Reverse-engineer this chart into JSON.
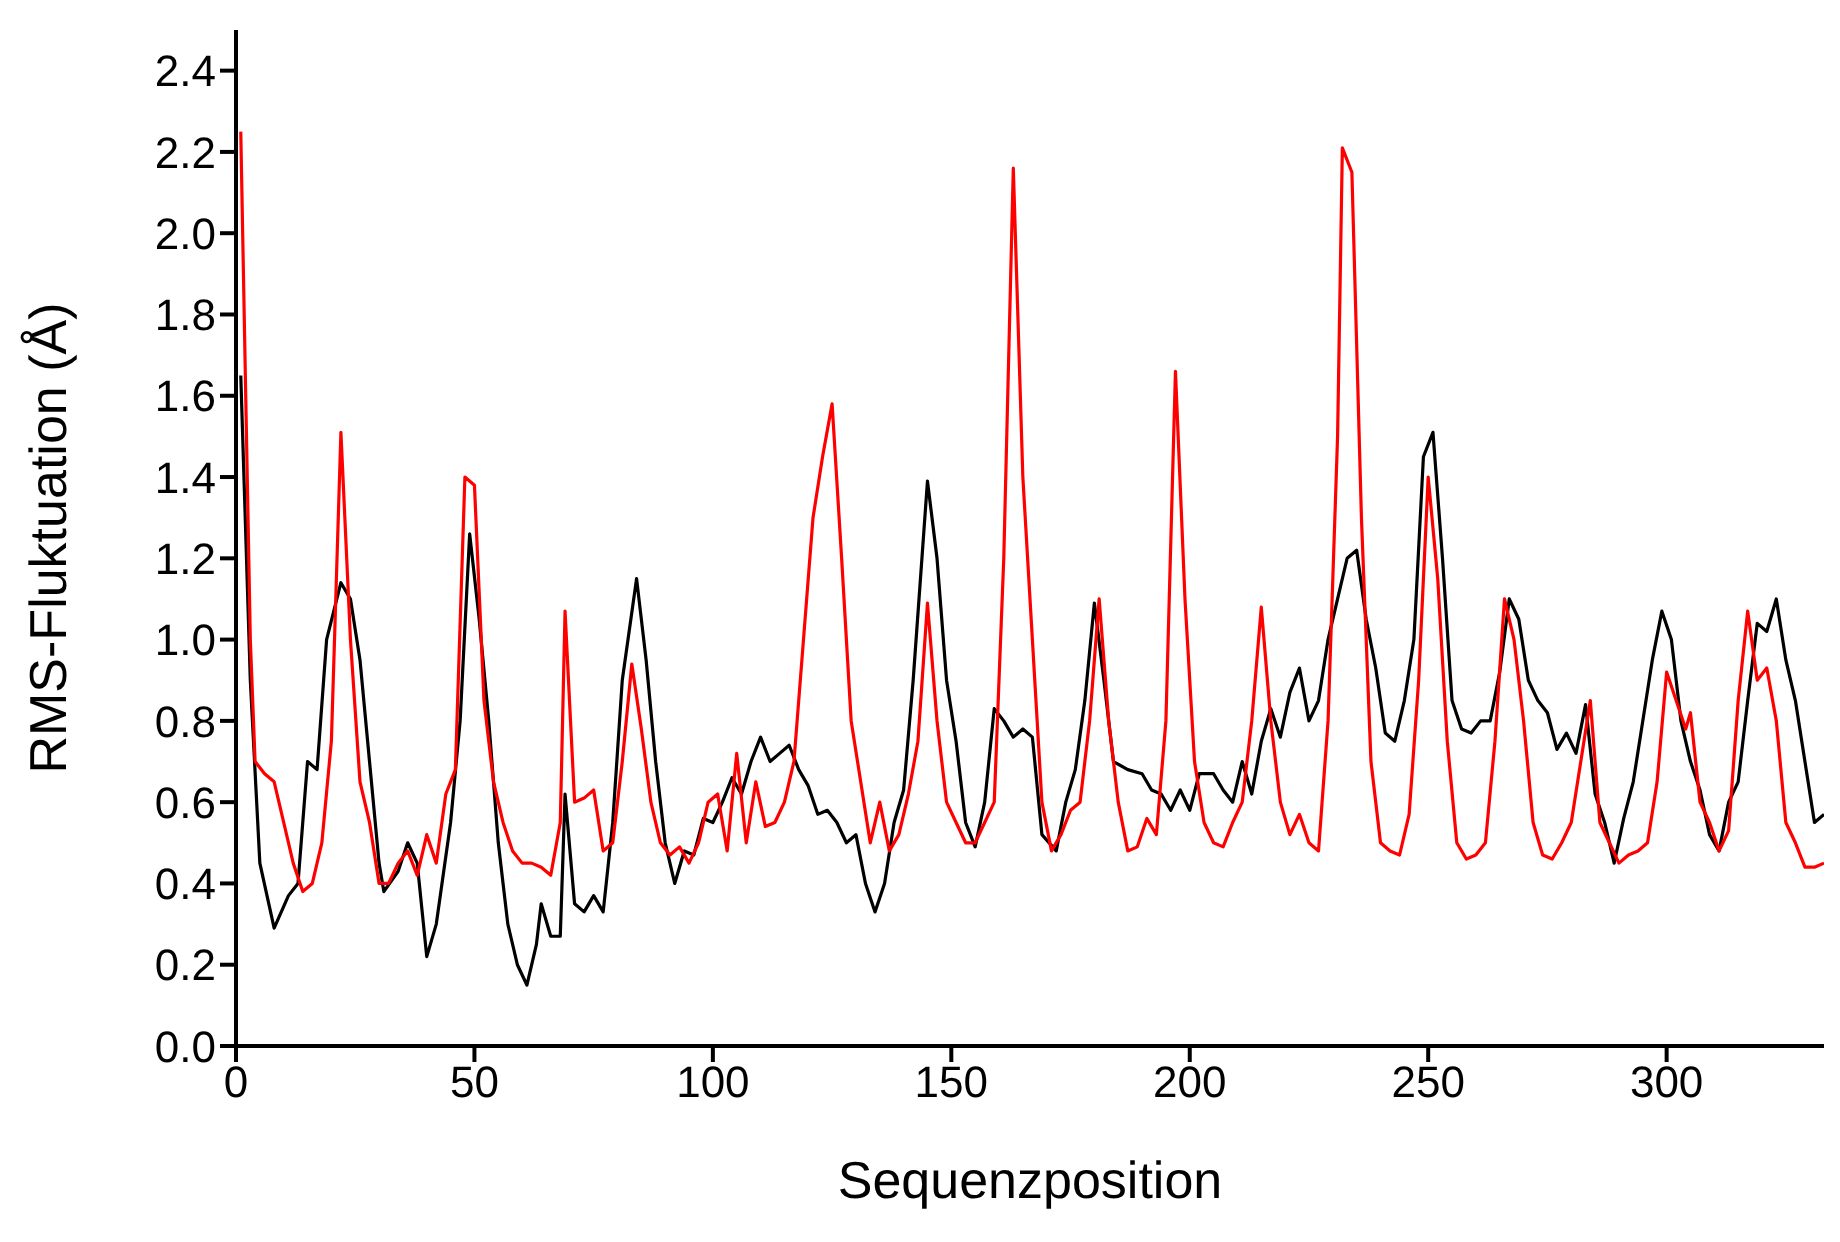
{
  "chart_data": {
    "type": "line",
    "xlabel": "Sequenzposition",
    "ylabel": "RMS-Fluktuation (Å)",
    "xlim": [
      0,
      333
    ],
    "xticks": [
      0,
      50,
      100,
      150,
      200,
      250,
      300
    ],
    "ylim": [
      0,
      2.5
    ],
    "yticks": [
      {
        "value": 0,
        "label": "0.0"
      },
      {
        "value": 0.2,
        "label": "0.2"
      },
      {
        "value": 0.4,
        "label": "0.4"
      },
      {
        "value": 0.6,
        "label": "0.6"
      },
      {
        "value": 0.8,
        "label": "0.8"
      },
      {
        "value": 1,
        "label": "1.0"
      },
      {
        "value": 1.2,
        "label": "1.2"
      },
      {
        "value": 1.4,
        "label": "1.4"
      },
      {
        "value": 1.6,
        "label": "1.6"
      },
      {
        "value": 1.8,
        "label": "1.8"
      },
      {
        "value": 2,
        "label": "2.0"
      },
      {
        "value": 2.2,
        "label": "2.2"
      },
      {
        "value": 2.4,
        "label": "2.4"
      }
    ],
    "grid": false,
    "legend": false,
    "marker": "none",
    "line_style": "solid",
    "series": [
      {
        "color": "#000000",
        "x": [
          1,
          3,
          5,
          8,
          11,
          13,
          15,
          17,
          19,
          22,
          24,
          26,
          28,
          30,
          31,
          34,
          36,
          38,
          40,
          42,
          45,
          47,
          49,
          51,
          53,
          55,
          57,
          59,
          61,
          63,
          64,
          66,
          68,
          69,
          71,
          73,
          75,
          77,
          79,
          81,
          84,
          86,
          88,
          90,
          92,
          94,
          96,
          98,
          100,
          102,
          104,
          106,
          108,
          110,
          112,
          114,
          116,
          118,
          120,
          122,
          124,
          126,
          128,
          130,
          132,
          134,
          136,
          138,
          140,
          142,
          145,
          147,
          149,
          151,
          153,
          155,
          157,
          159,
          161,
          163,
          165,
          167,
          169,
          172,
          174,
          176,
          178,
          180,
          182,
          184,
          187,
          190,
          192,
          194,
          196,
          198,
          200,
          202,
          205,
          207,
          209,
          211,
          213,
          215,
          217,
          219,
          221,
          223,
          225,
          227,
          229,
          231,
          233,
          235,
          237,
          239,
          241,
          243,
          245,
          247,
          249,
          251,
          253,
          255,
          257,
          259,
          261,
          263,
          265,
          267,
          269,
          271,
          273,
          275,
          277,
          279,
          281,
          283,
          285,
          287,
          289,
          291,
          293,
          295,
          297,
          299,
          301,
          303,
          305,
          307,
          309,
          311,
          313,
          315,
          317,
          319,
          321,
          323,
          325,
          327,
          329,
          331,
          333
        ],
        "values": [
          1.65,
          0.9,
          0.45,
          0.29,
          0.37,
          0.4,
          0.7,
          0.68,
          1.0,
          1.14,
          1.1,
          0.95,
          0.7,
          0.45,
          0.38,
          0.43,
          0.5,
          0.45,
          0.22,
          0.3,
          0.55,
          0.8,
          1.26,
          1.05,
          0.8,
          0.5,
          0.3,
          0.2,
          0.15,
          0.25,
          0.35,
          0.27,
          0.27,
          0.62,
          0.35,
          0.33,
          0.37,
          0.33,
          0.55,
          0.9,
          1.15,
          0.95,
          0.7,
          0.5,
          0.4,
          0.48,
          0.47,
          0.56,
          0.55,
          0.6,
          0.66,
          0.62,
          0.7,
          0.76,
          0.7,
          0.72,
          0.74,
          0.68,
          0.64,
          0.57,
          0.58,
          0.55,
          0.5,
          0.52,
          0.4,
          0.33,
          0.4,
          0.55,
          0.63,
          0.9,
          1.39,
          1.2,
          0.9,
          0.75,
          0.55,
          0.49,
          0.6,
          0.83,
          0.8,
          0.76,
          0.78,
          0.76,
          0.52,
          0.48,
          0.6,
          0.68,
          0.85,
          1.09,
          0.9,
          0.7,
          0.68,
          0.67,
          0.63,
          0.62,
          0.58,
          0.63,
          0.58,
          0.67,
          0.67,
          0.63,
          0.6,
          0.7,
          0.62,
          0.75,
          0.83,
          0.76,
          0.87,
          0.93,
          0.8,
          0.85,
          1.0,
          1.1,
          1.2,
          1.22,
          1.05,
          0.93,
          0.77,
          0.75,
          0.85,
          1.0,
          1.45,
          1.51,
          1.2,
          0.85,
          0.78,
          0.77,
          0.8,
          0.8,
          0.92,
          1.1,
          1.05,
          0.9,
          0.85,
          0.82,
          0.73,
          0.77,
          0.72,
          0.84,
          0.62,
          0.55,
          0.45,
          0.56,
          0.65,
          0.8,
          0.95,
          1.07,
          1.0,
          0.8,
          0.7,
          0.63,
          0.52,
          0.48,
          0.6,
          0.65,
          0.85,
          1.04,
          1.02,
          1.1,
          0.95,
          0.85,
          0.7,
          0.55,
          0.57
        ]
      },
      {
        "color": "#ff0000",
        "x": [
          1,
          3,
          4,
          6,
          8,
          10,
          12,
          14,
          16,
          18,
          20,
          22,
          24,
          26,
          28,
          30,
          32,
          34,
          36,
          38,
          40,
          42,
          44,
          46,
          48,
          50,
          52,
          54,
          56,
          58,
          60,
          62,
          64,
          66,
          68,
          69,
          71,
          73,
          75,
          77,
          79,
          81,
          83,
          85,
          87,
          89,
          91,
          93,
          95,
          97,
          99,
          101,
          103,
          105,
          107,
          109,
          111,
          113,
          115,
          117,
          119,
          121,
          123,
          125,
          127,
          129,
          131,
          133,
          135,
          137,
          139,
          141,
          143,
          145,
          147,
          149,
          151,
          153,
          155,
          157,
          159,
          161,
          163,
          165,
          167,
          169,
          171,
          173,
          175,
          177,
          179,
          181,
          183,
          185,
          187,
          189,
          191,
          193,
          195,
          197,
          199,
          201,
          203,
          205,
          207,
          209,
          211,
          213,
          215,
          217,
          219,
          221,
          223,
          225,
          227,
          229,
          231,
          232,
          234,
          236,
          238,
          240,
          242,
          244,
          246,
          248,
          250,
          252,
          254,
          256,
          258,
          260,
          262,
          264,
          266,
          268,
          270,
          272,
          274,
          276,
          278,
          280,
          282,
          284,
          286,
          288,
          290,
          292,
          294,
          296,
          298,
          300,
          302,
          304,
          305,
          307,
          309,
          311,
          313,
          315,
          317,
          319,
          321,
          323,
          325,
          327,
          329,
          331,
          333
        ],
        "values": [
          2.25,
          1.0,
          0.7,
          0.67,
          0.65,
          0.55,
          0.45,
          0.38,
          0.4,
          0.5,
          0.75,
          1.51,
          1.0,
          0.65,
          0.55,
          0.4,
          0.4,
          0.45,
          0.48,
          0.42,
          0.52,
          0.45,
          0.62,
          0.68,
          1.4,
          1.38,
          0.85,
          0.65,
          0.55,
          0.48,
          0.45,
          0.45,
          0.44,
          0.42,
          0.55,
          1.07,
          0.6,
          0.61,
          0.63,
          0.48,
          0.5,
          0.7,
          0.94,
          0.78,
          0.6,
          0.5,
          0.47,
          0.49,
          0.45,
          0.5,
          0.6,
          0.62,
          0.48,
          0.72,
          0.5,
          0.65,
          0.54,
          0.55,
          0.6,
          0.7,
          1.0,
          1.3,
          1.45,
          1.58,
          1.2,
          0.8,
          0.65,
          0.5,
          0.6,
          0.48,
          0.52,
          0.62,
          0.75,
          1.09,
          0.8,
          0.6,
          0.55,
          0.5,
          0.5,
          0.55,
          0.6,
          1.2,
          2.16,
          1.4,
          1.0,
          0.6,
          0.48,
          0.52,
          0.58,
          0.6,
          0.8,
          1.1,
          0.8,
          0.6,
          0.48,
          0.49,
          0.56,
          0.52,
          0.8,
          1.66,
          1.1,
          0.7,
          0.55,
          0.5,
          0.49,
          0.55,
          0.6,
          0.8,
          1.08,
          0.8,
          0.6,
          0.52,
          0.57,
          0.5,
          0.48,
          0.8,
          1.5,
          2.21,
          2.15,
          1.3,
          0.7,
          0.5,
          0.48,
          0.47,
          0.57,
          0.9,
          1.4,
          1.15,
          0.75,
          0.5,
          0.46,
          0.47,
          0.5,
          0.75,
          1.1,
          1.0,
          0.8,
          0.55,
          0.47,
          0.46,
          0.5,
          0.55,
          0.7,
          0.85,
          0.55,
          0.5,
          0.45,
          0.47,
          0.48,
          0.5,
          0.65,
          0.92,
          0.85,
          0.78,
          0.82,
          0.6,
          0.55,
          0.48,
          0.53,
          0.85,
          1.07,
          0.9,
          0.93,
          0.8,
          0.55,
          0.5,
          0.44,
          0.44,
          0.45
        ]
      }
    ]
  }
}
